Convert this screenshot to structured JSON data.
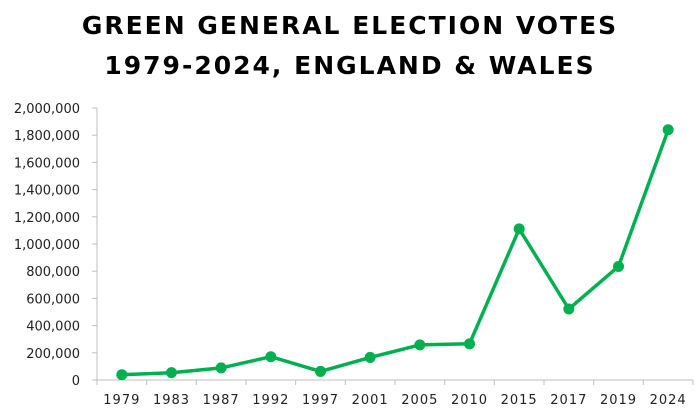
{
  "chart_data": {
    "type": "line",
    "title_line1": "GREEN GENERAL ELECTION VOTES",
    "title_line2": "1979-2024, ENGLAND & WALES",
    "xlabel": "",
    "ylabel": "",
    "categories": [
      "1979",
      "1983",
      "1987",
      "1992",
      "1997",
      "2001",
      "2005",
      "2010",
      "2015",
      "2017",
      "2019",
      "2024"
    ],
    "series": [
      {
        "values": [
          39000,
          54000,
          89000,
          171000,
          63000,
          166000,
          258000,
          266000,
          1111000,
          522000,
          835000,
          1840000
        ]
      }
    ],
    "ylim": [
      0,
      2000000
    ],
    "yticks": [
      0,
      200000,
      400000,
      600000,
      800000,
      1000000,
      1200000,
      1400000,
      1600000,
      1800000,
      2000000
    ],
    "ytick_labels": [
      "0",
      "200,000",
      "400,000",
      "600,000",
      "800,000",
      "1,000,000",
      "1,200,000",
      "1,400,000",
      "1,600,000",
      "1,800,000",
      "2,000,000"
    ],
    "grid": false,
    "legend": "none",
    "line_color": "#00B050"
  }
}
